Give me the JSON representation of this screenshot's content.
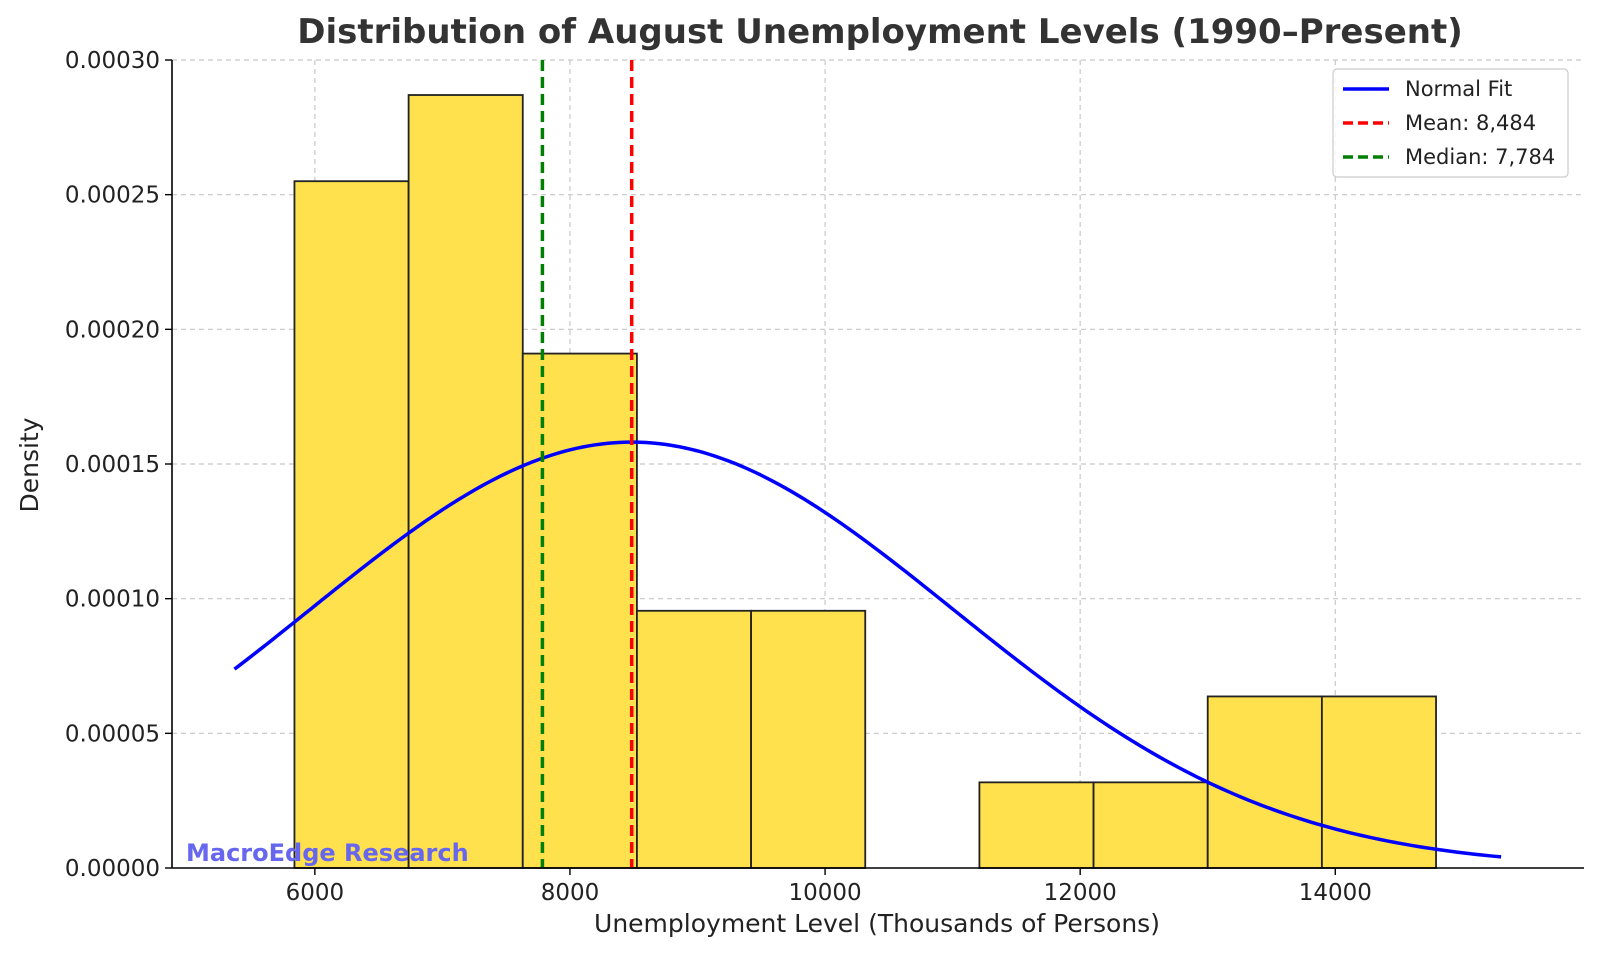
{
  "chart_data": {
    "type": "bar",
    "title": "Distribution of August Unemployment Levels (1990–Present)",
    "xlabel": "Unemployment Level (Thousands of Persons)",
    "ylabel": "Density",
    "xlim": [
      4880,
      15950
    ],
    "ylim": [
      0,
      0.0003
    ],
    "x_ticks": [
      6000,
      8000,
      10000,
      12000,
      14000
    ],
    "x_tick_labels": [
      "6000",
      "8000",
      "10000",
      "12000",
      "14000"
    ],
    "y_ticks": [
      0,
      5e-05,
      0.0001,
      0.00015,
      0.0002,
      0.00025,
      0.0003
    ],
    "y_tick_labels": [
      "0.00000",
      "0.00005",
      "0.00010",
      "0.00015",
      "0.00020",
      "0.00025",
      "0.00030"
    ],
    "grid": true,
    "histogram": {
      "bin_edges": [
        5840,
        6735,
        7630,
        8525,
        9420,
        10315,
        11210,
        12105,
        13000,
        13895,
        14790
      ],
      "density": [
        0.000255,
        0.000287,
        0.000191,
        9.55e-05,
        9.55e-05,
        0,
        3.18e-05,
        3.18e-05,
        6.37e-05,
        6.37e-05
      ],
      "fill_color": "#FFE04D",
      "edge_color": "#222222"
    },
    "normal_fit": {
      "name": "Normal Fit",
      "mean": 8484,
      "std": 2523,
      "x_range": [
        5370,
        15300
      ],
      "color": "#0000FF"
    },
    "vlines": [
      {
        "name": "Mean: 8,484",
        "x": 8484,
        "color": "#FF0000"
      },
      {
        "name": "Median: 7,784",
        "x": 7784,
        "color": "#008000"
      }
    ],
    "legend_position": "top-right",
    "watermark": {
      "text": "MacroEdge Research",
      "color": "#6666EE"
    }
  }
}
